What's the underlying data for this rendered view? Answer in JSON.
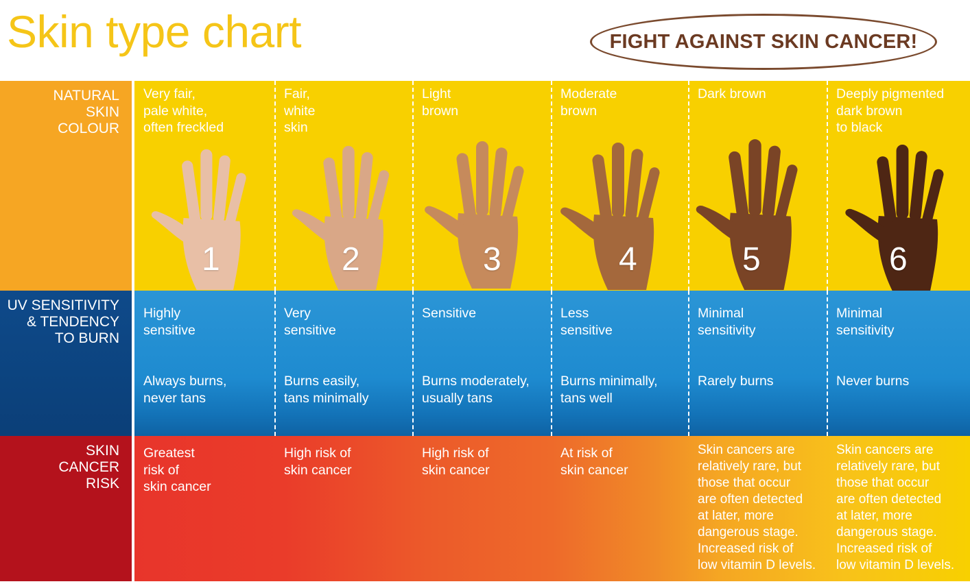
{
  "title": "Skin type chart",
  "slogan": "FIGHT AGAINST SKIN CANCER!",
  "rows": {
    "skin_label": "NATURAL\nSKIN\nCOLOUR",
    "uv_label": "UV SENSITIVITY\n& TENDENCY\nTO BURN",
    "risk_label": "SKIN\nCANCER\nRISK"
  },
  "types": [
    {
      "number": "1",
      "colour": "Very fair,\npale white,\noften freckled",
      "sensitivity": "Highly\nsensitive",
      "burn": "Always burns,\nnever tans",
      "risk": "Greatest\nrisk of\nskin cancer",
      "skin_hex": "#e8bfa6"
    },
    {
      "number": "2",
      "colour": "Fair,\nwhite\nskin",
      "sensitivity": "Very\nsensitive",
      "burn": "Burns easily,\ntans minimally",
      "risk": "High risk of\nskin cancer",
      "skin_hex": "#d9a787"
    },
    {
      "number": "3",
      "colour": "Light\nbrown",
      "sensitivity": "Sensitive",
      "burn": "Burns moderately,\nusually tans",
      "risk": "High risk of\nskin cancer",
      "skin_hex": "#c68a5c"
    },
    {
      "number": "4",
      "colour": "Moderate\nbrown",
      "sensitivity": "Less\nsensitive",
      "burn": "Burns minimally,\ntans well",
      "risk": "At risk of\nskin cancer",
      "skin_hex": "#a4683c"
    },
    {
      "number": "5",
      "colour": "Dark brown",
      "sensitivity": "Minimal\nsensitivity",
      "burn": "Rarely burns",
      "risk": "Skin cancers are\nrelatively rare, but\nthose that occur\nare often detected\nat later, more\ndangerous stage.\nIncreased risk of\nlow vitamin D levels.",
      "skin_hex": "#7a4426"
    },
    {
      "number": "6",
      "colour": "Deeply pigmented\ndark brown\nto black",
      "sensitivity": "Minimal\nsensitivity",
      "burn": "Never burns",
      "risk": "Skin cancers are\nrelatively rare, but\nthose that occur\nare often detected\nat later, more\ndangerous stage.\nIncreased risk of\nlow vitamin D levels.",
      "skin_hex": "#4e2614"
    }
  ]
}
